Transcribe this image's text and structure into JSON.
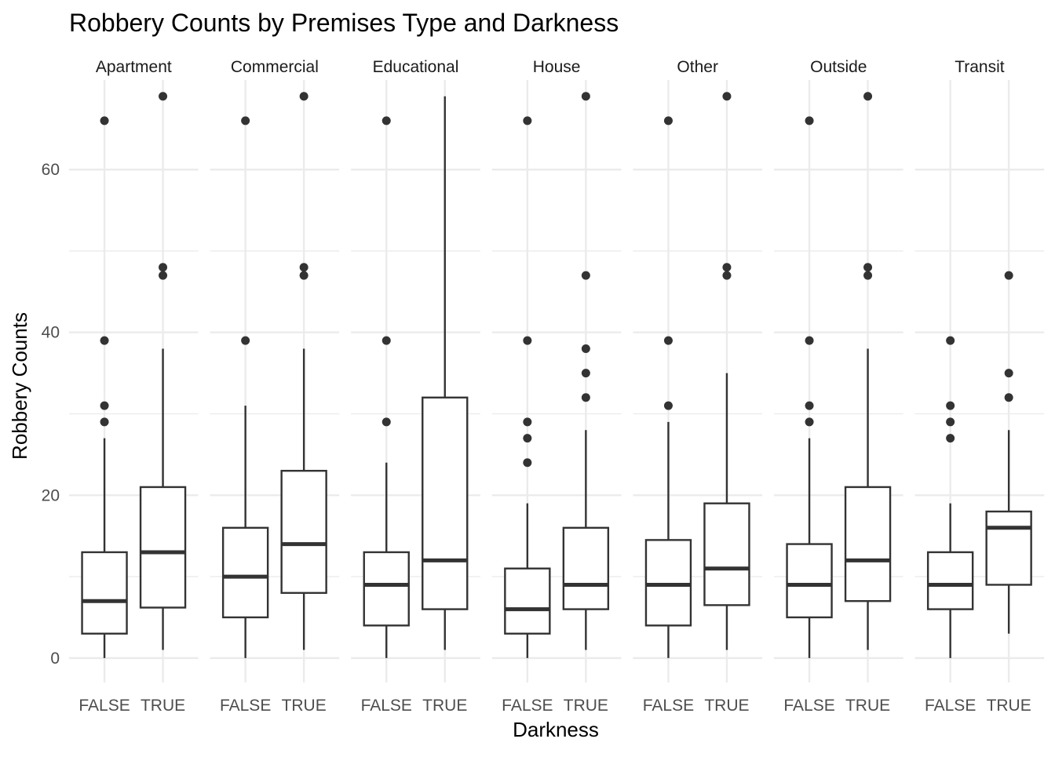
{
  "chart_data": {
    "type": "box",
    "title": "Robbery Counts by Premises Type and Darkness",
    "xlabel": "Darkness",
    "ylabel": "Robbery Counts",
    "ylim": [
      -3,
      71
    ],
    "y_ticks": [
      0,
      20,
      40,
      60
    ],
    "categories": [
      "FALSE",
      "TRUE"
    ],
    "grid": true,
    "colors": {
      "box_stroke": "#333333",
      "grid": "#ebebeb",
      "background": "#ffffff"
    },
    "facets": [
      {
        "panel": "Apartment",
        "boxes": [
          {
            "darkness": "FALSE",
            "min": 0,
            "q1": 3,
            "median": 7,
            "q3": 13,
            "max": 27,
            "outliers": [
              29,
              31,
              39,
              66
            ]
          },
          {
            "darkness": "TRUE",
            "min": 1,
            "q1": 6.2,
            "median": 13,
            "q3": 21,
            "max": 38,
            "outliers": [
              47,
              48,
              69
            ]
          }
        ]
      },
      {
        "panel": "Commercial",
        "boxes": [
          {
            "darkness": "FALSE",
            "min": 0,
            "q1": 5,
            "median": 10,
            "q3": 16,
            "max": 31,
            "outliers": [
              39,
              66
            ]
          },
          {
            "darkness": "TRUE",
            "min": 1,
            "q1": 8,
            "median": 14,
            "q3": 23,
            "max": 38,
            "outliers": [
              47,
              48,
              69
            ]
          }
        ]
      },
      {
        "panel": "Educational",
        "boxes": [
          {
            "darkness": "FALSE",
            "min": 0,
            "q1": 4,
            "median": 9,
            "q3": 13,
            "max": 24,
            "outliers": [
              29,
              39,
              66
            ]
          },
          {
            "darkness": "TRUE",
            "min": 1,
            "q1": 6,
            "median": 12,
            "q3": 32,
            "max": 69,
            "outliers": []
          }
        ]
      },
      {
        "panel": "House",
        "boxes": [
          {
            "darkness": "FALSE",
            "min": 0,
            "q1": 3,
            "median": 6,
            "q3": 11,
            "max": 19,
            "outliers": [
              24,
              27,
              29,
              39,
              66
            ]
          },
          {
            "darkness": "TRUE",
            "min": 1,
            "q1": 6,
            "median": 9,
            "q3": 16,
            "max": 28,
            "outliers": [
              32,
              35,
              38,
              47,
              69
            ]
          }
        ]
      },
      {
        "panel": "Other",
        "boxes": [
          {
            "darkness": "FALSE",
            "min": 0,
            "q1": 4,
            "median": 9,
            "q3": 14.5,
            "max": 29,
            "outliers": [
              31,
              39,
              66
            ]
          },
          {
            "darkness": "TRUE",
            "min": 1,
            "q1": 6.5,
            "median": 11,
            "q3": 19,
            "max": 35,
            "outliers": [
              47,
              48,
              69
            ]
          }
        ]
      },
      {
        "panel": "Outside",
        "boxes": [
          {
            "darkness": "FALSE",
            "min": 0,
            "q1": 5,
            "median": 9,
            "q3": 14,
            "max": 27,
            "outliers": [
              29,
              31,
              39,
              66
            ]
          },
          {
            "darkness": "TRUE",
            "min": 1,
            "q1": 7,
            "median": 12,
            "q3": 21,
            "max": 38,
            "outliers": [
              47,
              48,
              69
            ]
          }
        ]
      },
      {
        "panel": "Transit",
        "boxes": [
          {
            "darkness": "FALSE",
            "min": 0,
            "q1": 6,
            "median": 9,
            "q3": 13,
            "max": 19,
            "outliers": [
              27,
              29,
              31,
              39
            ]
          },
          {
            "darkness": "TRUE",
            "min": 3,
            "q1": 9,
            "median": 16,
            "q3": 18,
            "max": 28,
            "outliers": [
              32,
              35,
              47
            ]
          }
        ]
      }
    ]
  }
}
